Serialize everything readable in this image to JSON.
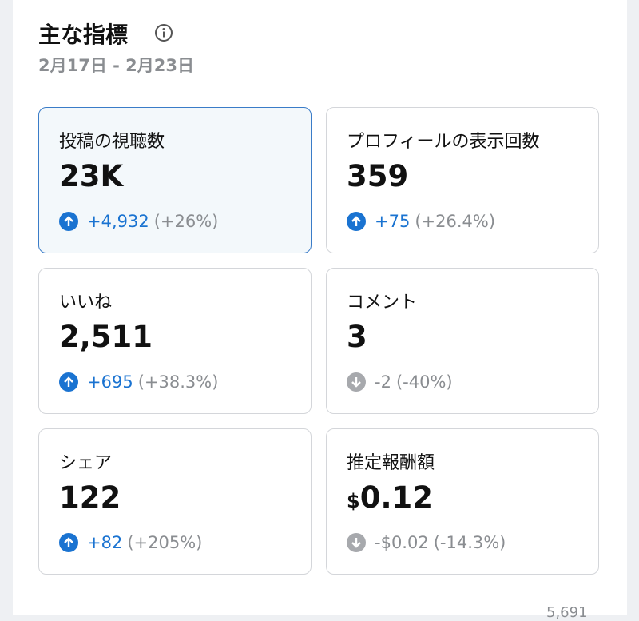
{
  "header": {
    "title": "主な指標",
    "date_range": "2月17日 - 2月23日"
  },
  "cards": [
    {
      "label": "投稿の視聴数",
      "value": "23K",
      "change": "+4,932",
      "percent": "(+26%)",
      "selected": true
    },
    {
      "label": "プロフィールの表示回数",
      "value": "359",
      "change": "+75",
      "percent": "(+26.4%)"
    },
    {
      "label": "いいね",
      "value": "2,511",
      "change": "+695",
      "percent": "(+38.3%)"
    },
    {
      "label": "コメント",
      "value": "3",
      "change": "-2",
      "percent": "(-40%)"
    },
    {
      "label": "シェア",
      "value": "122",
      "change": "+82",
      "percent": "(+205%)"
    },
    {
      "label": "推定報酬額",
      "prefix": "$",
      "value": "0.12",
      "change": "-$0.02",
      "percent": "(-14.3%)"
    }
  ],
  "footer": {
    "text": "5,691"
  }
}
